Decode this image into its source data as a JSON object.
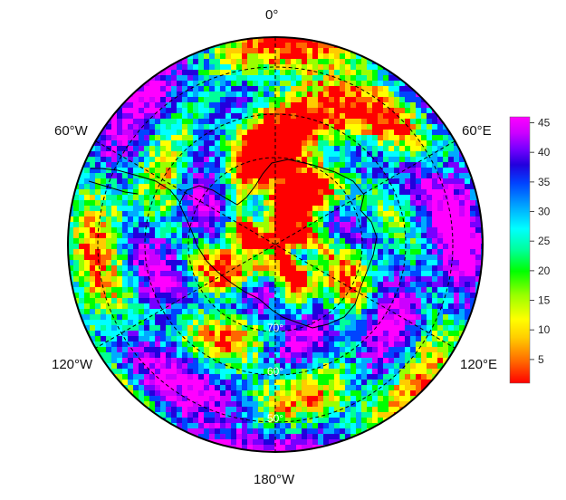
{
  "map": {
    "projection": "south-polar-stereographic",
    "longitude_labels": {
      "top": "0°",
      "upper_left": "60°W",
      "upper_right": "60°E",
      "lower_left": "120°W",
      "lower_right": "120°E",
      "bottom": "180°W"
    },
    "latitude_labels": [
      "70°",
      "60°",
      "50°"
    ],
    "colorbar": {
      "ticks": [
        "45",
        "40",
        "35",
        "30",
        "25",
        "20",
        "15",
        "10",
        "5"
      ],
      "min": 1,
      "max": 46,
      "colors": [
        "#ff0000",
        "#ff6600",
        "#ffcc00",
        "#ffff00",
        "#99ff00",
        "#00ff00",
        "#00ff99",
        "#00ffff",
        "#00aaff",
        "#0044ff",
        "#2200dd",
        "#7700ff",
        "#cc00ff",
        "#ff00ff"
      ]
    }
  }
}
